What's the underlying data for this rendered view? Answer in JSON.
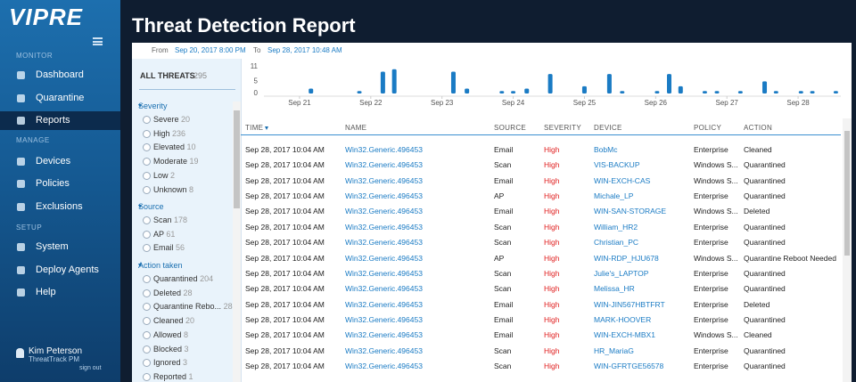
{
  "sidebar": {
    "logo": "VIPRE",
    "sections": [
      {
        "title": "MONITOR",
        "items": [
          "Dashboard",
          "Quarantine",
          "Reports"
        ]
      },
      {
        "title": "MANAGE",
        "items": [
          "Devices",
          "Policies",
          "Exclusions"
        ]
      },
      {
        "title": "SETUP",
        "items": [
          "System",
          "Deploy Agents",
          "Help"
        ]
      }
    ],
    "user": {
      "name": "Kim Peterson",
      "org": "ThreatTrack PM",
      "signout": "sign out"
    }
  },
  "header": {
    "title": "Threat Detection Report"
  },
  "range": {
    "from_label": "From",
    "from": "Sep 20, 2017 8:00 PM",
    "to_label": "To",
    "to": "Sep 28, 2017 10:48 AM"
  },
  "filters": {
    "all_threats": {
      "label": "ALL THREATS",
      "count": 295
    },
    "groups": [
      {
        "title": "Severity",
        "items": [
          {
            "label": "Severe",
            "count": 20
          },
          {
            "label": "High",
            "count": 236
          },
          {
            "label": "Elevated",
            "count": 10
          },
          {
            "label": "Moderate",
            "count": 19
          },
          {
            "label": "Low",
            "count": 2
          },
          {
            "label": "Unknown",
            "count": 8
          }
        ]
      },
      {
        "title": "Source",
        "items": [
          {
            "label": "Scan",
            "count": 178
          },
          {
            "label": "AP",
            "count": 61
          },
          {
            "label": "Email",
            "count": 56
          }
        ]
      },
      {
        "title": "Action taken",
        "items": [
          {
            "label": "Quarantined",
            "count": 204
          },
          {
            "label": "Deleted",
            "count": 28
          },
          {
            "label": "Quarantine Rebo...",
            "count": 28
          },
          {
            "label": "Cleaned",
            "count": 20
          },
          {
            "label": "Allowed",
            "count": 8
          },
          {
            "label": "Blocked",
            "count": 3
          },
          {
            "label": "Ignored",
            "count": 3
          },
          {
            "label": "Reported",
            "count": 1
          }
        ]
      }
    ]
  },
  "chart_data": {
    "type": "bar",
    "x": [
      21.16,
      21.84,
      22.17,
      22.33,
      23.16,
      23.35,
      23.84,
      24.0,
      24.19,
      24.52,
      25.0,
      25.35,
      25.53,
      26.02,
      26.19,
      26.35,
      26.69,
      26.86,
      27.19,
      27.53,
      27.69,
      28.04,
      28.2,
      28.53
    ],
    "values": [
      2,
      1,
      9,
      10,
      9,
      2,
      1,
      1,
      2,
      8,
      3,
      8,
      1,
      1,
      8,
      3,
      1,
      1,
      1,
      5,
      1,
      1,
      1,
      1
    ],
    "color": "#1a7bc4",
    "xlim": [
      20.5,
      28.6
    ],
    "xticks": [
      {
        "value": 21,
        "label": "Sep 21"
      },
      {
        "value": 22,
        "label": "Sep 22"
      },
      {
        "value": 23,
        "label": "Sep 23"
      },
      {
        "value": 24,
        "label": "Sep 24"
      },
      {
        "value": 25,
        "label": "Sep 25"
      },
      {
        "value": 26,
        "label": "Sep 26"
      },
      {
        "value": 27,
        "label": "Sep 27"
      },
      {
        "value": 28,
        "label": "Sep 28"
      }
    ],
    "ylim": [
      0,
      11
    ],
    "yticks": [
      0,
      5,
      11
    ]
  },
  "table": {
    "columns": [
      "TIME",
      "NAME",
      "SOURCE",
      "SEVERITY",
      "DEVICE",
      "POLICY",
      "ACTION"
    ],
    "rows": [
      [
        "Sep 28, 2017 10:04 AM",
        "Win32.Generic.496453",
        "Email",
        "High",
        "BobMc",
        "Enterprise",
        "Cleaned"
      ],
      [
        "Sep 28, 2017 10:04 AM",
        "Win32.Generic.496453",
        "Scan",
        "High",
        "VIS-BACKUP",
        "Windows S...",
        "Quarantined"
      ],
      [
        "Sep 28, 2017 10:04 AM",
        "Win32.Generic.496453",
        "Email",
        "High",
        "WIN-EXCH-CAS",
        "Windows S...",
        "Quarantined"
      ],
      [
        "Sep 28, 2017 10:04 AM",
        "Win32.Generic.496453",
        "AP",
        "High",
        "Michale_LP",
        "Enterprise",
        "Quarantined"
      ],
      [
        "Sep 28, 2017 10:04 AM",
        "Win32.Generic.496453",
        "Email",
        "High",
        "WIN-SAN-STORAGE",
        "Windows S...",
        "Deleted"
      ],
      [
        "Sep 28, 2017 10:04 AM",
        "Win32.Generic.496453",
        "Scan",
        "High",
        "William_HR2",
        "Enterprise",
        "Quarantined"
      ],
      [
        "Sep 28, 2017 10:04 AM",
        "Win32.Generic.496453",
        "Scan",
        "High",
        "Christian_PC",
        "Enterprise",
        "Quarantined"
      ],
      [
        "Sep 28, 2017 10:04 AM",
        "Win32.Generic.496453",
        "AP",
        "High",
        "WIN-RDP_HJU678",
        "Windows S...",
        "Quarantine Reboot Needed"
      ],
      [
        "Sep 28, 2017 10:04 AM",
        "Win32.Generic.496453",
        "Scan",
        "High",
        "Julie's_LAPTOP",
        "Enterprise",
        "Quarantined"
      ],
      [
        "Sep 28, 2017 10:04 AM",
        "Win32.Generic.496453",
        "Scan",
        "High",
        "Melissa_HR",
        "Enterprise",
        "Quarantined"
      ],
      [
        "Sep 28, 2017 10:04 AM",
        "Win32.Generic.496453",
        "Email",
        "High",
        "WIN-JIN567HBTFRT",
        "Enterprise",
        "Deleted"
      ],
      [
        "Sep 28, 2017 10:04 AM",
        "Win32.Generic.496453",
        "Email",
        "High",
        "MARK-HOOVER",
        "Enterprise",
        "Quarantined"
      ],
      [
        "Sep 28, 2017 10:04 AM",
        "Win32.Generic.496453",
        "Email",
        "High",
        "WIN-EXCH-MBX1",
        "Windows S...",
        "Cleaned"
      ],
      [
        "Sep 28, 2017 10:04 AM",
        "Win32.Generic.496453",
        "Scan",
        "High",
        "HR_MariaG",
        "Enterprise",
        "Quarantined"
      ],
      [
        "Sep 28, 2017 10:04 AM",
        "Win32.Generic.496453",
        "Scan",
        "High",
        "WIN-GFRTGE56578",
        "Enterprise",
        "Quarantined"
      ]
    ]
  }
}
